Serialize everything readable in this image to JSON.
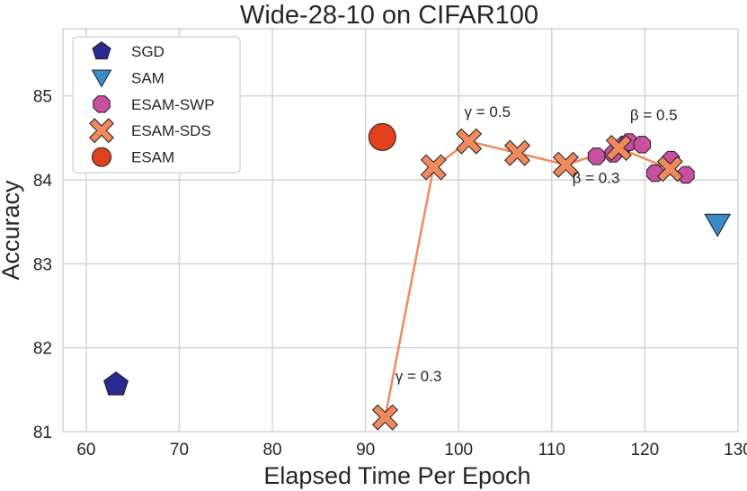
{
  "chart_data": {
    "type": "scatter",
    "title": "Wide-28-10 on CIFAR100",
    "xlabel": "Elapsed Time Per Epoch",
    "ylabel": "Accuracy",
    "xlim": [
      57.5,
      130
    ],
    "ylim": [
      81,
      85.8
    ],
    "xticks": [
      60,
      70,
      80,
      90,
      100,
      110,
      120,
      130
    ],
    "yticks": [
      81,
      82,
      83,
      84,
      85
    ],
    "grid": true,
    "legend_position": "top-left",
    "series": [
      {
        "name": "SGD",
        "marker": "pentagon",
        "color": "#2a2a8e",
        "points": [
          [
            63.2,
            81.56
          ]
        ]
      },
      {
        "name": "SAM",
        "marker": "triangle-down",
        "color": "#3a8ac4",
        "points": [
          [
            127.8,
            83.47
          ]
        ]
      },
      {
        "name": "ESAM-SWP",
        "marker": "octagon",
        "color": "#c94f9f",
        "points": [
          [
            114.8,
            84.28
          ],
          [
            116.6,
            84.31
          ],
          [
            117.8,
            84.42
          ],
          [
            118.3,
            84.45
          ],
          [
            119.7,
            84.42
          ],
          [
            121.1,
            84.08
          ],
          [
            122.8,
            84.24
          ],
          [
            124.4,
            84.06
          ]
        ]
      },
      {
        "name": "ESAM-SDS",
        "marker": "x",
        "color": "#f08a5d",
        "line": true,
        "points": [
          [
            92.1,
            81.17
          ],
          [
            97.3,
            84.15
          ],
          [
            101.1,
            84.46
          ],
          [
            106.3,
            84.32
          ],
          [
            111.5,
            84.18
          ],
          [
            117.2,
            84.38
          ],
          [
            122.7,
            84.13
          ]
        ]
      },
      {
        "name": "ESAM",
        "marker": "circle",
        "color": "#e1401f",
        "points": [
          [
            91.8,
            84.51
          ]
        ]
      }
    ],
    "annotations": [
      {
        "text": "γ = 0.3",
        "x": 93.2,
        "y": 81.6
      },
      {
        "text": "γ = 0.5",
        "x": 100.6,
        "y": 84.75
      },
      {
        "text": "β = 0.3",
        "x": 112.2,
        "y": 83.96
      },
      {
        "text": "β = 0.5",
        "x": 118.4,
        "y": 84.71
      }
    ]
  }
}
